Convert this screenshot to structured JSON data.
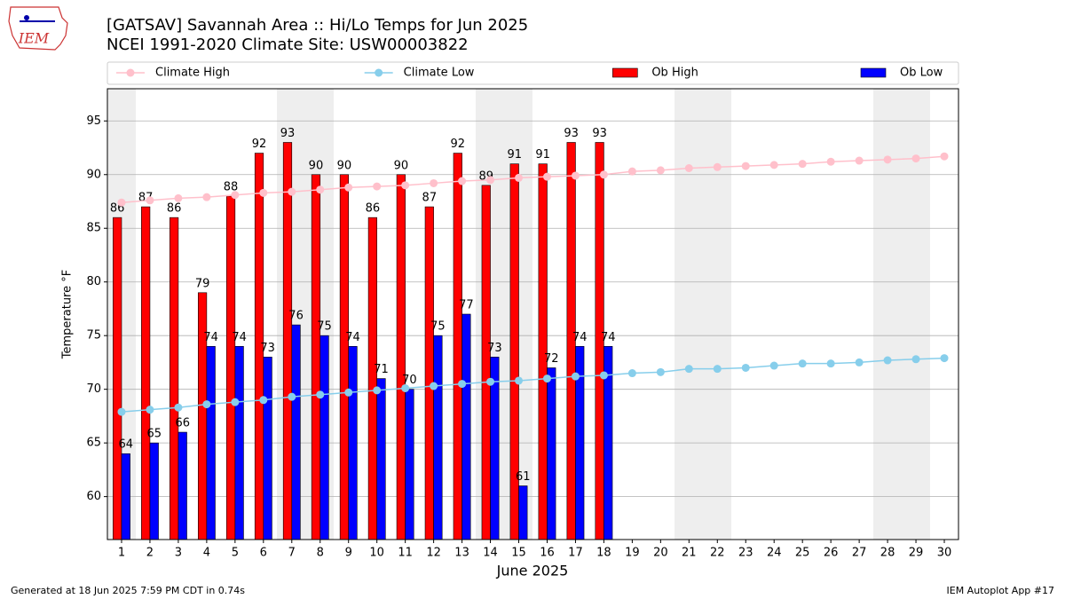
{
  "header": {
    "logo_text": "IEM"
  },
  "chart_data": {
    "type": "bar",
    "title": "[GATSAV] Savannah Area :: Hi/Lo Temps for Jun 2025",
    "subtitle": "NCEI 1991-2020 Climate Site: USW00003822",
    "x_label": "June 2025",
    "y_label": "Temperature °F",
    "x": [
      1,
      2,
      3,
      4,
      5,
      6,
      7,
      8,
      9,
      10,
      11,
      12,
      13,
      14,
      15,
      16,
      17,
      18,
      19,
      20,
      21,
      22,
      23,
      24,
      25,
      26,
      27,
      28,
      29,
      30
    ],
    "series": [
      {
        "name": "Climate High",
        "type": "line",
        "color": "#ffc0cb",
        "values": [
          87.4,
          87.6,
          87.8,
          87.9,
          88.1,
          88.3,
          88.4,
          88.6,
          88.8,
          88.9,
          89.0,
          89.2,
          89.4,
          89.5,
          89.7,
          89.8,
          89.9,
          90.0,
          90.3,
          90.4,
          90.6,
          90.7,
          90.8,
          90.9,
          91.0,
          91.2,
          91.3,
          91.4,
          91.5,
          91.7
        ]
      },
      {
        "name": "Climate Low",
        "type": "line",
        "color": "#87ceeb",
        "values": [
          67.9,
          68.1,
          68.3,
          68.6,
          68.8,
          69.0,
          69.3,
          69.5,
          69.7,
          69.9,
          70.1,
          70.3,
          70.5,
          70.7,
          70.8,
          71.0,
          71.2,
          71.3,
          71.5,
          71.6,
          71.9,
          71.9,
          72.0,
          72.2,
          72.4,
          72.4,
          72.5,
          72.7,
          72.8,
          72.9
        ]
      },
      {
        "name": "Ob High",
        "type": "bar",
        "color": "#ff0000",
        "values": [
          86,
          87,
          86,
          79,
          88,
          92,
          93,
          90,
          90,
          86,
          90,
          87,
          92,
          89,
          91,
          91,
          93,
          93,
          null,
          null,
          null,
          null,
          null,
          null,
          null,
          null,
          null,
          null,
          null,
          null
        ]
      },
      {
        "name": "Ob Low",
        "type": "bar",
        "color": "#0000ff",
        "values": [
          64,
          65,
          66,
          74,
          74,
          73,
          76,
          75,
          74,
          71,
          70,
          75,
          77,
          73,
          61,
          72,
          74,
          74,
          null,
          null,
          null,
          null,
          null,
          null,
          null,
          null,
          null,
          null,
          null,
          null
        ]
      }
    ],
    "xlim": [
      0.5,
      30.5
    ],
    "ylim": [
      56,
      98
    ],
    "xticks": [
      1,
      2,
      3,
      4,
      5,
      6,
      7,
      8,
      9,
      10,
      11,
      12,
      13,
      14,
      15,
      16,
      17,
      18,
      19,
      20,
      21,
      22,
      23,
      24,
      25,
      26,
      27,
      28,
      29,
      30
    ],
    "yticks": [
      60,
      65,
      70,
      75,
      80,
      85,
      90,
      95
    ],
    "grid": true,
    "legend": "top"
  },
  "footer": {
    "left": "Generated at 18 Jun 2025 7:59 PM CDT in 0.74s",
    "right": "IEM Autoplot App #17"
  }
}
